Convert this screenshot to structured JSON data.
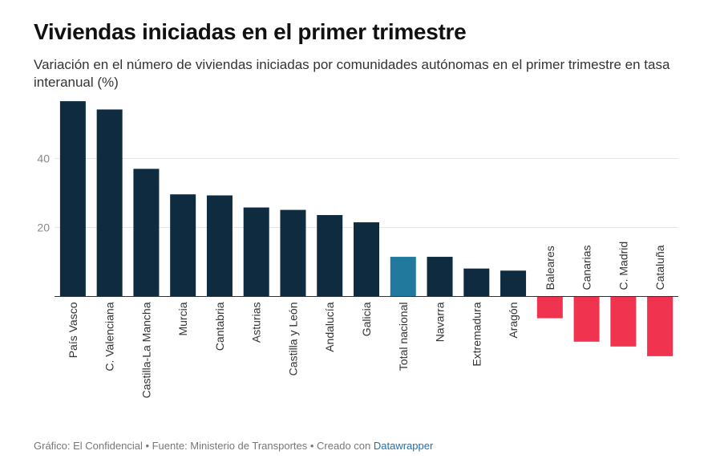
{
  "title": "Viviendas iniciadas en el primer trimestre",
  "subtitle": "Variación en el número de viviendas iniciadas por comunidades autónomas en el primer trimestre en tasa interanual (%)",
  "footer": {
    "text": "Gráfico: El Confidencial • Fuente: Ministerio de Transportes • Creado con ",
    "link": "Datawrapper"
  },
  "colors": {
    "positive": "#0f2b40",
    "national": "#21799e",
    "negative": "#f0334f",
    "grid": "#e6e6e6",
    "tick": "#888888"
  },
  "chart_data": {
    "type": "bar",
    "categories": [
      "País Vasco",
      "C. Valenciana",
      "Castilla-La Mancha",
      "Murcia",
      "Cantabria",
      "Asturias",
      "Castilla y León",
      "Andalucía",
      "Galicia",
      "Total nacional",
      "Navarra",
      "Extremadura",
      "Aragón",
      "Baleares",
      "Canarias",
      "C. Madrid",
      "Cataluña"
    ],
    "values": [
      56.6,
      54.2,
      37.0,
      29.6,
      29.3,
      25.8,
      25.1,
      23.6,
      21.5,
      11.5,
      11.5,
      8.1,
      7.5,
      -6.3,
      -13.1,
      -14.5,
      -17.3
    ],
    "highlight": "Total nacional",
    "yticks": [
      20,
      40
    ],
    "ylim": [
      -20,
      56.6
    ],
    "grid": true,
    "legend": "none"
  }
}
